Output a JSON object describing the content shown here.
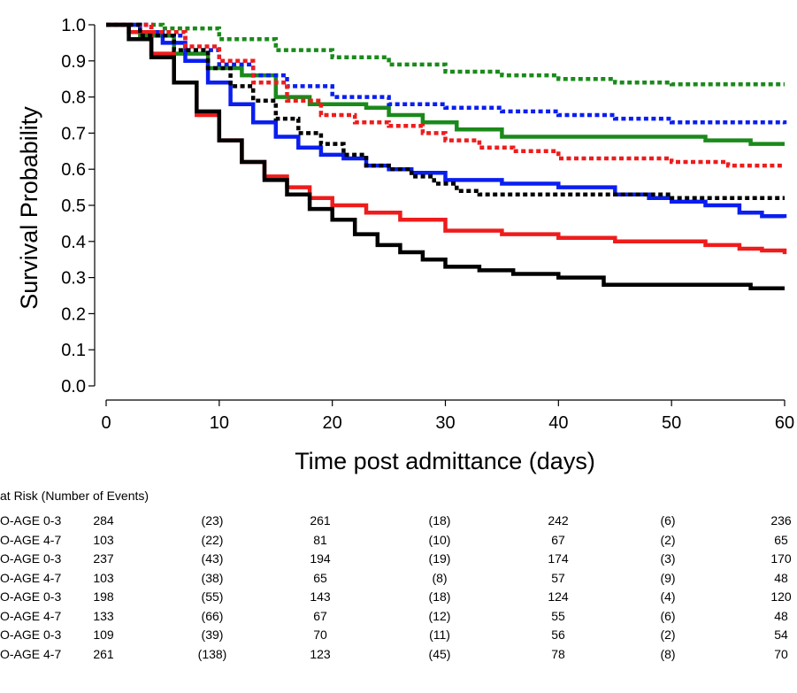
{
  "chart_data": {
    "type": "line",
    "subtype": "kaplan-meier step curves",
    "xlabel": "Time post admittance (days)",
    "ylabel": "Survival Probability",
    "xlim": [
      0,
      60
    ],
    "ylim": [
      0,
      1
    ],
    "x_ticks": [
      "0",
      "10",
      "20",
      "30",
      "40",
      "50",
      "60"
    ],
    "y_ticks": [
      "0.0",
      "0.1",
      "0.2",
      "0.3",
      "0.4",
      "0.5",
      "0.6",
      "0.7",
      "0.8",
      "0.9",
      "1.0"
    ],
    "grid": false,
    "legend": "none",
    "series": [
      {
        "color": "#1a8a1a",
        "style": "dotted",
        "points": [
          [
            0,
            1
          ],
          [
            5,
            0.99
          ],
          [
            10,
            0.96
          ],
          [
            15,
            0.93
          ],
          [
            20,
            0.91
          ],
          [
            25,
            0.89
          ],
          [
            30,
            0.87
          ],
          [
            35,
            0.86
          ],
          [
            40,
            0.85
          ],
          [
            45,
            0.84
          ],
          [
            50,
            0.835
          ],
          [
            55,
            0.835
          ],
          [
            60,
            0.835
          ]
        ]
      },
      {
        "color": "#1a8a1a",
        "style": "solid",
        "points": [
          [
            0,
            1
          ],
          [
            3,
            0.97
          ],
          [
            6,
            0.92
          ],
          [
            9,
            0.88
          ],
          [
            12,
            0.86
          ],
          [
            15,
            0.8
          ],
          [
            18,
            0.78
          ],
          [
            20,
            0.78
          ],
          [
            23,
            0.77
          ],
          [
            25,
            0.75
          ],
          [
            28,
            0.73
          ],
          [
            31,
            0.71
          ],
          [
            35,
            0.69
          ],
          [
            40,
            0.69
          ],
          [
            45,
            0.69
          ],
          [
            50,
            0.69
          ],
          [
            53,
            0.68
          ],
          [
            57,
            0.67
          ],
          [
            60,
            0.67
          ]
        ]
      },
      {
        "color": "#0a1ef0",
        "style": "dotted",
        "points": [
          [
            0,
            1
          ],
          [
            4,
            0.97
          ],
          [
            7,
            0.93
          ],
          [
            10,
            0.89
          ],
          [
            13,
            0.86
          ],
          [
            16,
            0.83
          ],
          [
            20,
            0.8
          ],
          [
            25,
            0.78
          ],
          [
            30,
            0.77
          ],
          [
            35,
            0.76
          ],
          [
            40,
            0.75
          ],
          [
            45,
            0.74
          ],
          [
            50,
            0.73
          ],
          [
            55,
            0.73
          ],
          [
            60,
            0.725
          ]
        ]
      },
      {
        "color": "#0a1ef0",
        "style": "solid",
        "points": [
          [
            0,
            1
          ],
          [
            3,
            0.98
          ],
          [
            5,
            0.95
          ],
          [
            7,
            0.9
          ],
          [
            9,
            0.84
          ],
          [
            11,
            0.78
          ],
          [
            13,
            0.73
          ],
          [
            15,
            0.69
          ],
          [
            17,
            0.66
          ],
          [
            19,
            0.64
          ],
          [
            21,
            0.63
          ],
          [
            23,
            0.61
          ],
          [
            25,
            0.6
          ],
          [
            27,
            0.59
          ],
          [
            30,
            0.57
          ],
          [
            35,
            0.56
          ],
          [
            40,
            0.55
          ],
          [
            45,
            0.53
          ],
          [
            48,
            0.52
          ],
          [
            50,
            0.51
          ],
          [
            53,
            0.5
          ],
          [
            56,
            0.48
          ],
          [
            58,
            0.47
          ],
          [
            60,
            0.465
          ]
        ]
      },
      {
        "color": "#ee1c1c",
        "style": "dotted",
        "points": [
          [
            0,
            1
          ],
          [
            4,
            0.98
          ],
          [
            7,
            0.94
          ],
          [
            10,
            0.9
          ],
          [
            13,
            0.84
          ],
          [
            16,
            0.79
          ],
          [
            19,
            0.75
          ],
          [
            22,
            0.73
          ],
          [
            25,
            0.72
          ],
          [
            28,
            0.7
          ],
          [
            30,
            0.68
          ],
          [
            33,
            0.66
          ],
          [
            36,
            0.65
          ],
          [
            40,
            0.63
          ],
          [
            45,
            0.63
          ],
          [
            50,
            0.62
          ],
          [
            55,
            0.61
          ],
          [
            60,
            0.61
          ]
        ]
      },
      {
        "color": "#ee1c1c",
        "style": "solid",
        "points": [
          [
            0,
            1
          ],
          [
            2,
            0.98
          ],
          [
            4,
            0.92
          ],
          [
            6,
            0.84
          ],
          [
            8,
            0.75
          ],
          [
            10,
            0.68
          ],
          [
            12,
            0.62
          ],
          [
            14,
            0.58
          ],
          [
            16,
            0.55
          ],
          [
            18,
            0.52
          ],
          [
            20,
            0.5
          ],
          [
            23,
            0.48
          ],
          [
            26,
            0.46
          ],
          [
            30,
            0.43
          ],
          [
            35,
            0.42
          ],
          [
            40,
            0.41
          ],
          [
            45,
            0.4
          ],
          [
            50,
            0.4
          ],
          [
            53,
            0.39
          ],
          [
            56,
            0.38
          ],
          [
            58,
            0.375
          ],
          [
            60,
            0.365
          ]
        ]
      },
      {
        "color": "#000000",
        "style": "dotted",
        "points": [
          [
            0,
            1
          ],
          [
            3,
            0.97
          ],
          [
            6,
            0.93
          ],
          [
            9,
            0.88
          ],
          [
            11,
            0.83
          ],
          [
            13,
            0.79
          ],
          [
            15,
            0.74
          ],
          [
            17,
            0.7
          ],
          [
            19,
            0.67
          ],
          [
            21,
            0.64
          ],
          [
            23,
            0.61
          ],
          [
            25,
            0.6
          ],
          [
            27,
            0.58
          ],
          [
            29,
            0.56
          ],
          [
            31,
            0.54
          ],
          [
            33,
            0.53
          ],
          [
            35,
            0.53
          ],
          [
            40,
            0.53
          ],
          [
            45,
            0.53
          ],
          [
            50,
            0.52
          ],
          [
            55,
            0.52
          ],
          [
            60,
            0.52
          ]
        ]
      },
      {
        "color": "#000000",
        "style": "solid",
        "points": [
          [
            0,
            1
          ],
          [
            2,
            0.96
          ],
          [
            4,
            0.91
          ],
          [
            6,
            0.84
          ],
          [
            8,
            0.76
          ],
          [
            10,
            0.68
          ],
          [
            12,
            0.62
          ],
          [
            14,
            0.57
          ],
          [
            16,
            0.53
          ],
          [
            18,
            0.49
          ],
          [
            20,
            0.46
          ],
          [
            22,
            0.42
          ],
          [
            24,
            0.39
          ],
          [
            26,
            0.37
          ],
          [
            28,
            0.35
          ],
          [
            30,
            0.33
          ],
          [
            33,
            0.32
          ],
          [
            36,
            0.31
          ],
          [
            40,
            0.3
          ],
          [
            44,
            0.28
          ],
          [
            48,
            0.28
          ],
          [
            52,
            0.28
          ],
          [
            55,
            0.28
          ],
          [
            57,
            0.27
          ],
          [
            60,
            0.27
          ]
        ]
      }
    ]
  },
  "risk_table": {
    "title": "at Risk (Number of Events)",
    "rows": [
      {
        "label": "O-AGE 0-3",
        "cells": [
          "284",
          "(23)",
          "261",
          "(18)",
          "242",
          "(6)",
          "236"
        ]
      },
      {
        "label": "O-AGE 4-7",
        "cells": [
          "103",
          "(22)",
          "81",
          "(10)",
          "67",
          "(2)",
          "65"
        ]
      },
      {
        "label": "O-AGE 0-3",
        "cells": [
          "237",
          "(43)",
          "194",
          "(19)",
          "174",
          "(3)",
          "170"
        ]
      },
      {
        "label": "O-AGE 4-7",
        "cells": [
          "103",
          "(38)",
          "65",
          "(8)",
          "57",
          "(9)",
          "48"
        ]
      },
      {
        "label": "O-AGE 0-3",
        "cells": [
          "198",
          "(55)",
          "143",
          "(18)",
          "124",
          "(4)",
          "120"
        ]
      },
      {
        "label": "O-AGE 4-7",
        "cells": [
          "133",
          "(66)",
          "67",
          "(12)",
          "55",
          "(6)",
          "48"
        ]
      },
      {
        "label": "O-AGE 0-3",
        "cells": [
          "109",
          "(39)",
          "70",
          "(11)",
          "56",
          "(2)",
          "54"
        ]
      },
      {
        "label": "O-AGE 4-7",
        "cells": [
          "261",
          "(138)",
          "123",
          "(45)",
          "78",
          "(8)",
          "70"
        ]
      }
    ]
  }
}
